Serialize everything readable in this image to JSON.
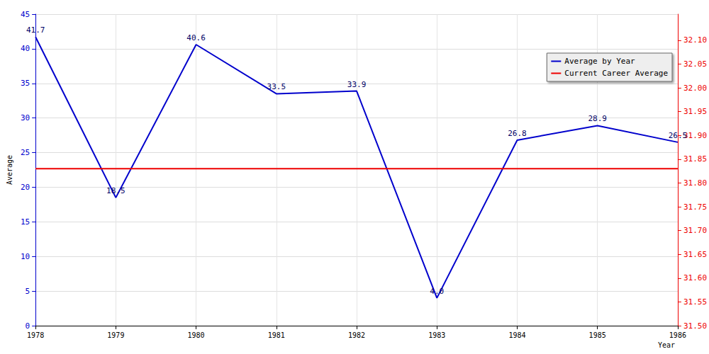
{
  "chart_data": {
    "type": "line",
    "x_label": "Year",
    "y_label": "Average",
    "categories": [
      "1978",
      "1979",
      "1980",
      "1981",
      "1982",
      "1983",
      "1984",
      "1985",
      "1986"
    ],
    "series": [
      {
        "name": "Average by Year",
        "color": "#0000cc",
        "axis": "y",
        "data_labels": true,
        "values": [
          41.7,
          18.5,
          40.6,
          33.5,
          33.9,
          4.0,
          26.8,
          28.9,
          26.5
        ],
        "value_labels": [
          "41.7",
          "18.5",
          "40.6",
          "33.5",
          "33.9",
          "4.0",
          "26.8",
          "28.9",
          "26.5"
        ]
      },
      {
        "name": "Current Career Average",
        "color": "#ee0000",
        "axis": "y2",
        "values": [
          31.83,
          31.83,
          31.83,
          31.83,
          31.83,
          31.83,
          31.83,
          31.83,
          31.83
        ]
      }
    ],
    "ylim": [
      0,
      45
    ],
    "yticks": [
      0,
      5,
      10,
      15,
      20,
      25,
      30,
      35,
      40,
      45
    ],
    "y2lim": [
      31.5,
      32.155
    ],
    "y2ticks": [
      {
        "value": 31.5,
        "label": "31.50"
      },
      31.55,
      {
        "value": 31.6,
        "label": "31.60"
      },
      31.65,
      {
        "value": 31.7,
        "label": "31.70"
      },
      31.75,
      {
        "value": 31.8,
        "label": "31.80"
      },
      31.85,
      {
        "value": 31.9,
        "label": "31.90"
      },
      31.95,
      {
        "value": 32.0,
        "label": "32.00"
      },
      32.05,
      {
        "value": 32.1,
        "label": "32.10"
      }
    ],
    "grid": true,
    "legend": "upper right"
  }
}
